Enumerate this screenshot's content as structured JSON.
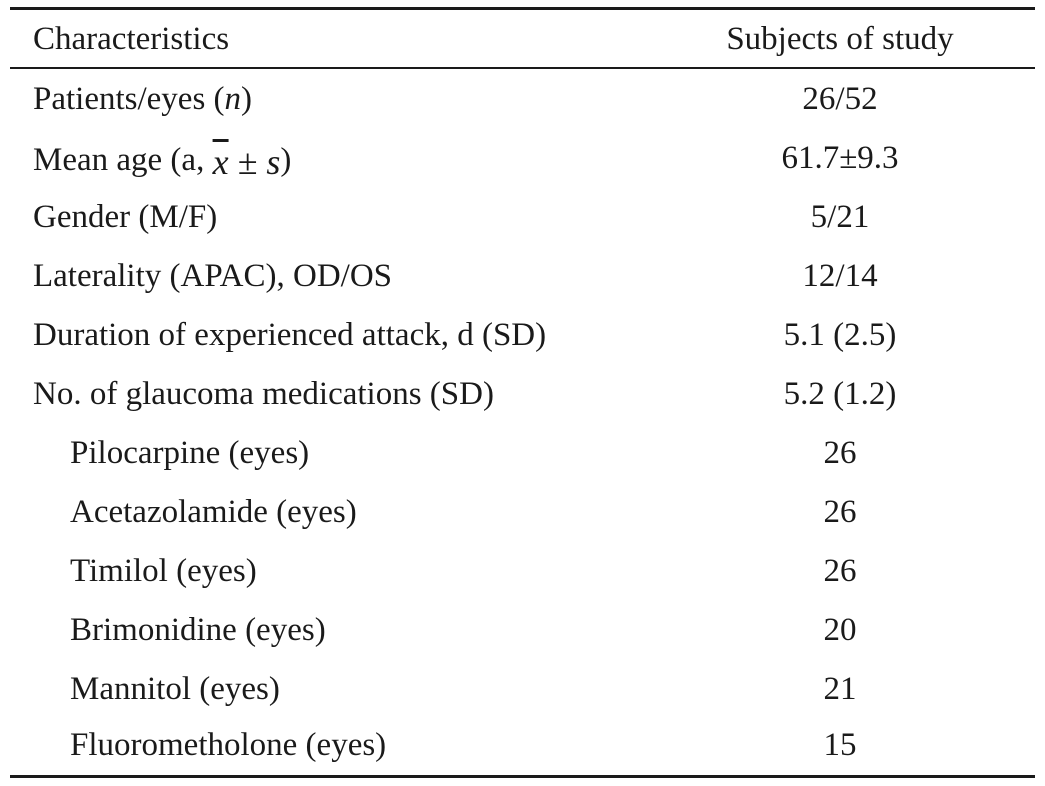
{
  "table": {
    "header": {
      "label": "Characteristics",
      "value": "Subjects of study"
    },
    "rows": [
      {
        "label": "Patients/eyes (",
        "label_italic": "n",
        "label_suffix": ")",
        "value": "26/52",
        "indent": false
      },
      {
        "label": "Mean age (a, ",
        "label_math": "x ± s",
        "label_suffix": ")",
        "value": "61.7±9.3",
        "indent": false
      },
      {
        "label": "Gender (M/F)",
        "value": "5/21",
        "indent": false
      },
      {
        "label": "Laterality (APAC), OD/OS",
        "value": "12/14",
        "indent": false
      },
      {
        "label": "Duration of experienced attack, d (SD)",
        "value": "5.1 (2.5)",
        "indent": false
      },
      {
        "label": "No. of glaucoma medications (SD)",
        "value": "5.2 (1.2)",
        "indent": false
      },
      {
        "label": "Pilocarpine (eyes)",
        "value": "26",
        "indent": true
      },
      {
        "label": "Acetazolamide (eyes)",
        "value": "26",
        "indent": true
      },
      {
        "label": "Timilol (eyes)",
        "value": "26",
        "indent": true
      },
      {
        "label": "Brimonidine (eyes)",
        "value": "20",
        "indent": true
      },
      {
        "label": "Mannitol (eyes)",
        "value": "21",
        "indent": true
      },
      {
        "label": "Fluorometholone (eyes)",
        "value": "15",
        "indent": true
      }
    ]
  }
}
